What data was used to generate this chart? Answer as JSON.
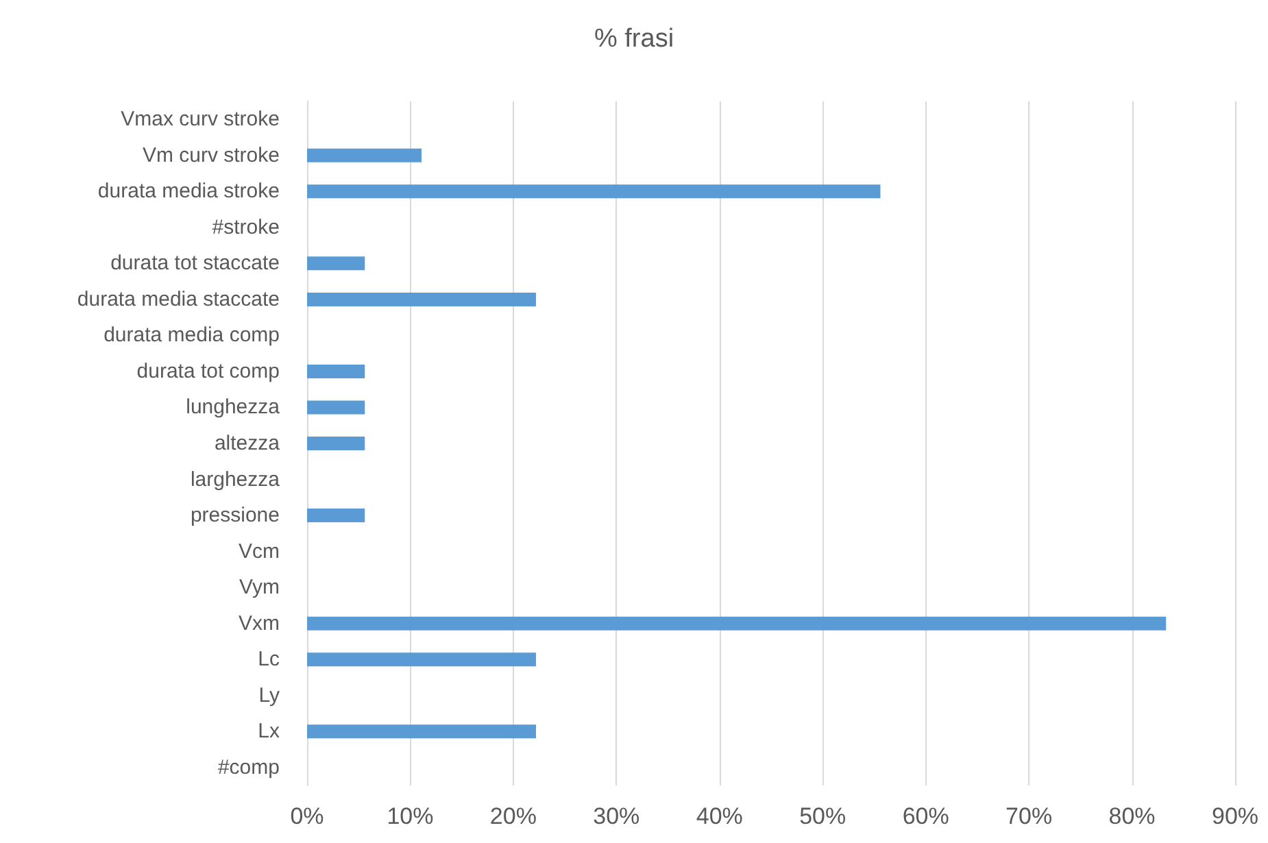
{
  "chart_data": {
    "type": "bar",
    "orientation": "horizontal",
    "title": "% frasi",
    "categories": [
      "Vmax curv stroke",
      "Vm curv stroke",
      "durata media stroke",
      "#stroke",
      "durata tot staccate",
      "durata media staccate",
      "durata media comp",
      "durata tot comp",
      "lunghezza",
      "altezza",
      "larghezza",
      "pressione",
      "Vcm",
      "Vym",
      "Vxm",
      "Lc",
      "Ly",
      "Lx",
      "#comp"
    ],
    "values": [
      0,
      11.1,
      55.6,
      0,
      5.6,
      22.2,
      0,
      5.6,
      5.6,
      5.6,
      0,
      5.6,
      0,
      0,
      83.3,
      22.2,
      0,
      22.2,
      0
    ],
    "color": "#5b9bd5",
    "xlim": [
      0,
      90
    ],
    "xticks": [
      {
        "value": 0,
        "label": "0%"
      },
      {
        "value": 10,
        "label": "10%"
      },
      {
        "value": 20,
        "label": "20%"
      },
      {
        "value": 30,
        "label": "30%"
      },
      {
        "value": 40,
        "label": "40%"
      },
      {
        "value": 50,
        "label": "50%"
      },
      {
        "value": 60,
        "label": "60%"
      },
      {
        "value": 70,
        "label": "70%"
      },
      {
        "value": 80,
        "label": "80%"
      },
      {
        "value": 90,
        "label": "90%"
      }
    ],
    "grid": "x"
  }
}
